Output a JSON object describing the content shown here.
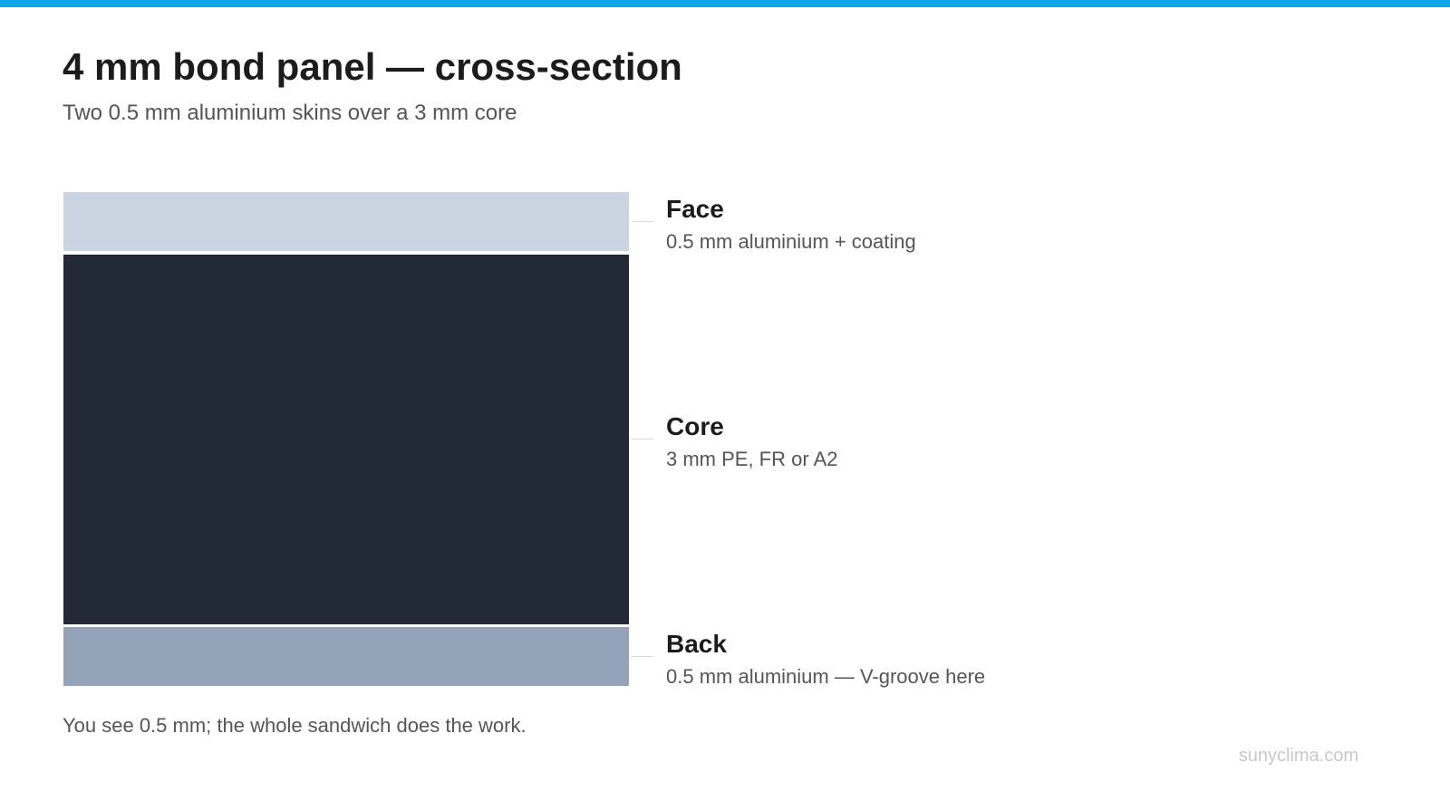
{
  "header": {
    "title": "4 mm bond panel — cross-section",
    "subtitle": "Two 0.5 mm aluminium skins over a 3 mm core"
  },
  "layers": [
    {
      "name": "Face",
      "description": "0.5 mm aluminium + coating"
    },
    {
      "name": "Core",
      "description": "3 mm PE, FR or A2"
    },
    {
      "name": "Back",
      "description": "0.5 mm aluminium — V-groove here"
    }
  ],
  "note": "You see 0.5 mm; the whole sandwich does the work.",
  "watermark": "sunyclima.com"
}
